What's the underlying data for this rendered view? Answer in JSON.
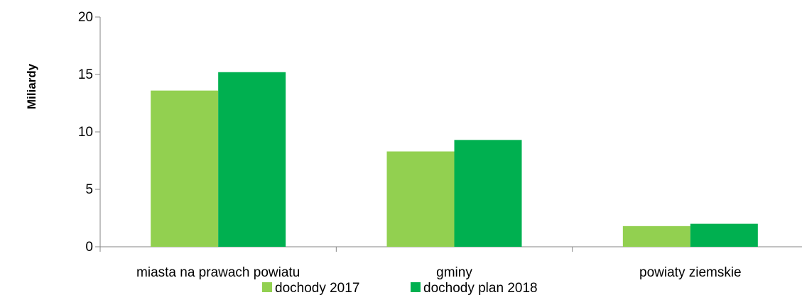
{
  "chart_data": {
    "type": "bar",
    "title": "",
    "xlabel": "",
    "ylabel": "Miliardy",
    "ylim": [
      0,
      20
    ],
    "yticks": [
      0,
      5,
      10,
      15,
      20
    ],
    "grid": false,
    "legend_position": "bottom",
    "categories": [
      "miasta na prawach powiatu",
      "gminy",
      "powiaty ziemskie"
    ],
    "series": [
      {
        "name": "dochody 2017",
        "color": "#92d050",
        "values": [
          13.6,
          8.3,
          1.8
        ]
      },
      {
        "name": "dochody plan 2018",
        "color": "#00b050",
        "values": [
          15.2,
          9.3,
          2.0
        ]
      }
    ]
  }
}
